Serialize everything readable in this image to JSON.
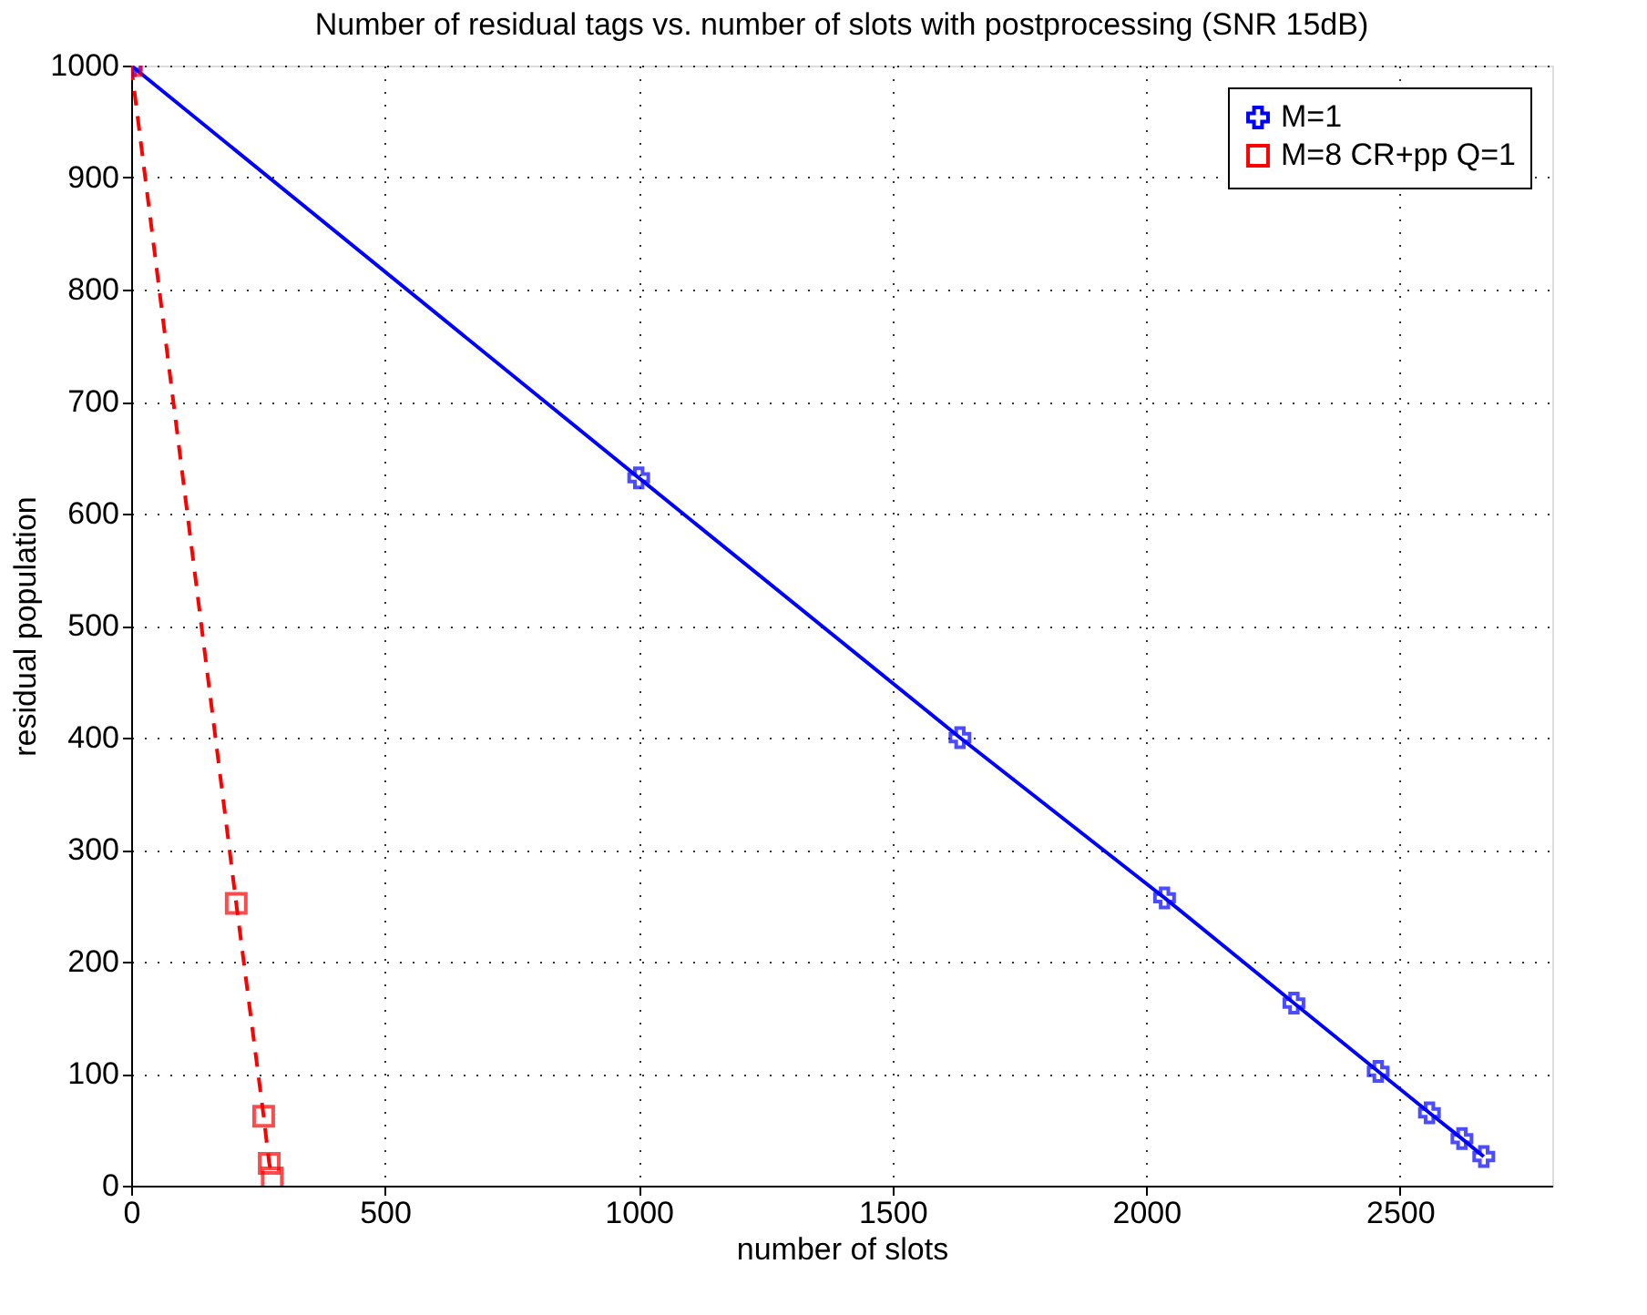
{
  "chart_data": {
    "type": "line",
    "title": "Number of residual tags vs. number of slots with postprocessing (SNR 15dB)",
    "xlabel": "number of slots",
    "ylabel": "residual population",
    "xlim": [
      0,
      2800
    ],
    "xticks": [
      0,
      500,
      1000,
      1500,
      2000,
      2500
    ],
    "ylim": [
      0,
      1000
    ],
    "yticks": [
      0,
      100,
      200,
      300,
      400,
      500,
      600,
      700,
      800,
      900,
      1000
    ],
    "grid": true,
    "legend": "top right",
    "series": [
      {
        "name": "M=1",
        "color": "#0000ff",
        "marker": "cross",
        "line_style": "solid",
        "x": [
          0,
          1000,
          1633,
          2036,
          2291,
          2457,
          2558,
          2622,
          2665
        ],
        "values": [
          1000,
          632,
          400,
          257,
          163,
          102,
          65,
          42,
          26
        ]
      },
      {
        "name": "M=8 CR+pp Q=1",
        "color": "#ff0000",
        "marker": "square",
        "line_style": "dashed",
        "x": [
          0,
          207,
          261,
          272,
          278
        ],
        "values": [
          1000,
          252,
          62,
          20,
          7
        ]
      }
    ]
  }
}
